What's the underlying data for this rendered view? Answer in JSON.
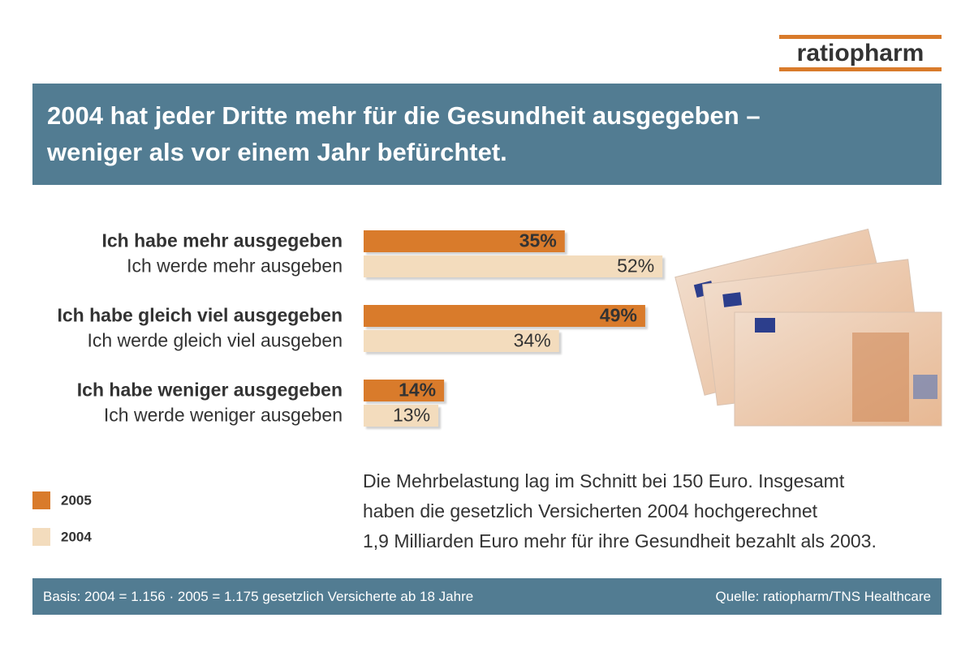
{
  "logo": "ratiopharm",
  "chart_data": {
    "type": "bar",
    "title": [
      "2004 hat jeder Dritte mehr für die Gesundheit ausgegeben –",
      "weniger als vor einem Jahr befürchtet."
    ],
    "series": [
      {
        "name": "2005",
        "color": "#d97b2b",
        "labels": [
          "Ich habe mehr ausgegeben",
          "Ich habe gleich viel ausgegeben",
          "Ich habe weniger ausgegeben"
        ],
        "values": [
          35,
          49,
          14
        ],
        "value_labels": [
          "35%",
          "49%",
          "14%"
        ]
      },
      {
        "name": "2004",
        "color": "#f3dcbd",
        "labels": [
          "Ich werde mehr ausgeben",
          "Ich werde gleich viel ausgeben",
          "Ich werde weniger ausgeben"
        ],
        "values": [
          52,
          34,
          13
        ],
        "value_labels": [
          "52%",
          "34%",
          "13%"
        ]
      }
    ],
    "note": [
      "Die Mehrbelastung lag im Schnitt bei 150 Euro. Insgesamt",
      "haben die gesetzlich Versicherten 2004 hochgerechnet",
      "1,9 Milliarden Euro mehr für ihre Gesundheit bezahlt als 2003."
    ],
    "basis": "Basis: 2004 = 1.156 · 2005 = 1.175 gesetzlich Versicherte ab 18 Jahre",
    "source": "Quelle: ratiopharm/TNS Healthcare"
  }
}
